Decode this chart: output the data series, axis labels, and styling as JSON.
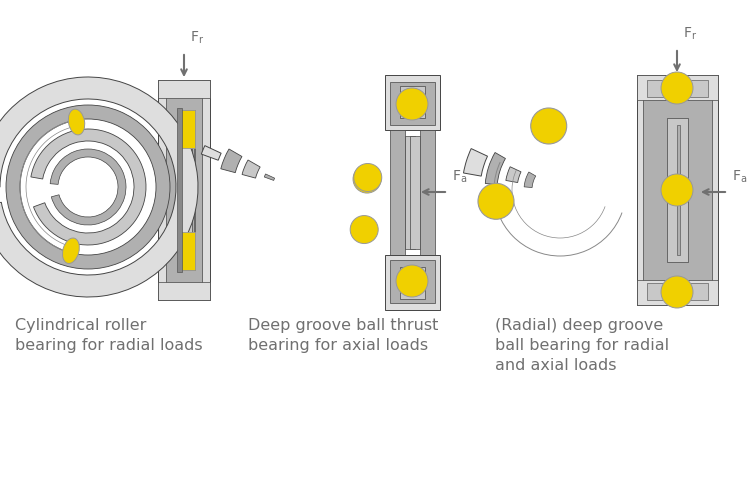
{
  "bg_color": "#ffffff",
  "c_dark": "#606060",
  "c_mid": "#888888",
  "c_light": "#b0b0b0",
  "c_lighter": "#c8c8c8",
  "c_lightest": "#dedede",
  "c_white": "#efefef",
  "c_outline": "#444444",
  "yellow": "#f0d000",
  "yellow_hi": "#f8e840",
  "arrow_color": "#707070",
  "text_color": "#707070",
  "label1": [
    "Cylindrical roller",
    "bearing for radial loads"
  ],
  "label2": [
    "Deep groove ball thrust",
    "bearing for axial loads"
  ],
  "label3": [
    "(Radial) deep groove",
    "ball bearing for radial",
    "and axial loads"
  ],
  "figsize": [
    7.5,
    4.8
  ],
  "dpi": 100
}
